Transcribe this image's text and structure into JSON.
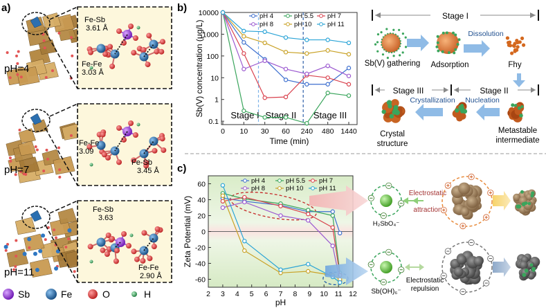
{
  "panels": {
    "a": "a)",
    "b": "b)",
    "c": "c)"
  },
  "panel_a": {
    "structures": [
      {
        "ph": "pH=4",
        "bonds": [
          {
            "name": "Fe-Sb",
            "dist": "3.61 Å"
          },
          {
            "name": "Fe-Fe",
            "dist": "3.03 Å"
          }
        ]
      },
      {
        "ph": "pH=7",
        "bonds": [
          {
            "name": "Fe-Fe",
            "dist": "3.09"
          },
          {
            "name": "Fe-Sb",
            "dist": "3.45 Å"
          }
        ]
      },
      {
        "ph": "pH=11",
        "bonds": [
          {
            "name": "Fe-Sb",
            "dist": "3.63"
          },
          {
            "name": "Fe-Fe",
            "dist": "2.90 Å"
          }
        ]
      }
    ],
    "legend": [
      {
        "label": "Sb",
        "color": "#8e2ad6"
      },
      {
        "label": "Fe",
        "color": "#1f6fb5"
      },
      {
        "label": "O",
        "color": "#e03a3a"
      },
      {
        "label": "H",
        "color": "#3aa55c"
      }
    ]
  },
  "mechanism": {
    "stage1": "Stage I",
    "stage2": "Stage II",
    "stage3": "Stage III",
    "gathering": "Sb(V) gathering",
    "adsorption": "Adsorption",
    "dissolution": "Dissolution",
    "fhy": "Fhy",
    "nucleation": "Nucleation",
    "crystallization": "Crystallization",
    "metastable": [
      "Metastable",
      "intermediate"
    ],
    "crystal": [
      "Crystal",
      "structure"
    ]
  },
  "electrostatic": {
    "species_top": "H₂SbO₄⁻",
    "attraction": [
      "Electrostatic",
      "attraction"
    ],
    "species_bottom": "Sb(OH)₆⁻",
    "repulsion": [
      "Electrostatic",
      "repulsion"
    ]
  },
  "chart_data": [
    {
      "type": "line",
      "ylabel": "Sb(V) concentration (μg/L)",
      "xlabel": "Time (min)",
      "yscale": "log",
      "ylim": [
        0.07,
        10000
      ],
      "y_ticks": [
        "0.1",
        "1",
        "10",
        "100",
        "1000",
        "10000"
      ],
      "y_tick_values": [
        0.1,
        1,
        10,
        100,
        1000,
        10000
      ],
      "categories": [
        "0",
        "10",
        "30",
        "60",
        "240",
        "480",
        "1440"
      ],
      "stage_labels": [
        "Stage I",
        "Stage II",
        "Stage III"
      ],
      "series": [
        {
          "name": "pH 4",
          "color": "#3d6fcf",
          "values": [
            10000,
            420,
            70,
            8,
            5,
            5,
            28
          ]
        },
        {
          "name": "pH 5.5",
          "color": "#3aa55c",
          "values": [
            10000,
            0.3,
            0.15,
            0.15,
            0.08,
            2.0,
            1.5
          ]
        },
        {
          "name": "pH 7",
          "color": "#d9414d",
          "values": [
            10000,
            130,
            1.2,
            1.3,
            13,
            10,
            5
          ]
        },
        {
          "name": "pH 8",
          "color": "#9b59d0",
          "values": [
            10000,
            25,
            60,
            25,
            15,
            35,
            12
          ]
        },
        {
          "name": "pH 10",
          "color": "#c9a227",
          "values": [
            10000,
            800,
            400,
            150,
            130,
            180,
            120
          ]
        },
        {
          "name": "pH 11",
          "color": "#29a3d6",
          "values": [
            10000,
            1400,
            1300,
            700,
            550,
            550,
            400
          ]
        }
      ]
    },
    {
      "type": "line",
      "ylabel": "Zeta Potential (mV)",
      "xlabel": "pH",
      "xlim": [
        2,
        12
      ],
      "ylim": [
        -70,
        70
      ],
      "x_ticks": [
        2,
        3,
        4,
        5,
        6,
        7,
        8,
        9,
        10,
        11,
        12
      ],
      "y_ticks": [
        -60,
        -40,
        -20,
        0,
        20,
        40,
        60
      ],
      "series": [
        {
          "name": "pH 4",
          "color": "#3d6fcf",
          "x": [
            3,
            4.5,
            7,
            8.9,
            10.6,
            11.1
          ],
          "y": [
            42,
            38,
            33,
            25,
            25,
            -2
          ]
        },
        {
          "name": "pH 5.5",
          "color": "#3aa55c",
          "x": [
            3,
            4.5,
            7,
            8.9,
            10.6,
            11.1
          ],
          "y": [
            48,
            41,
            35,
            27,
            20,
            -52
          ]
        },
        {
          "name": "pH 7",
          "color": "#d9414d",
          "x": [
            3,
            4.5,
            7,
            8.9,
            10.6,
            11.1
          ],
          "y": [
            38,
            43,
            32,
            22,
            5,
            -55
          ]
        },
        {
          "name": "pH 8",
          "color": "#9b59d0",
          "x": [
            3,
            4.5,
            7,
            8.9,
            10.6,
            11.1
          ],
          "y": [
            30,
            37,
            20,
            14,
            -18,
            -62
          ]
        },
        {
          "name": "pH 10",
          "color": "#c9a227",
          "x": [
            3,
            4.5,
            7,
            8.9,
            10.6,
            11.1
          ],
          "y": [
            45,
            -24,
            -52,
            -50,
            -55,
            -60
          ]
        },
        {
          "name": "pH 11",
          "color": "#29a3d6",
          "x": [
            3,
            4.5,
            7,
            8.9,
            10.6,
            11.1
          ],
          "y": [
            58,
            -12,
            -48,
            -41,
            -57,
            -64
          ]
        }
      ]
    }
  ]
}
